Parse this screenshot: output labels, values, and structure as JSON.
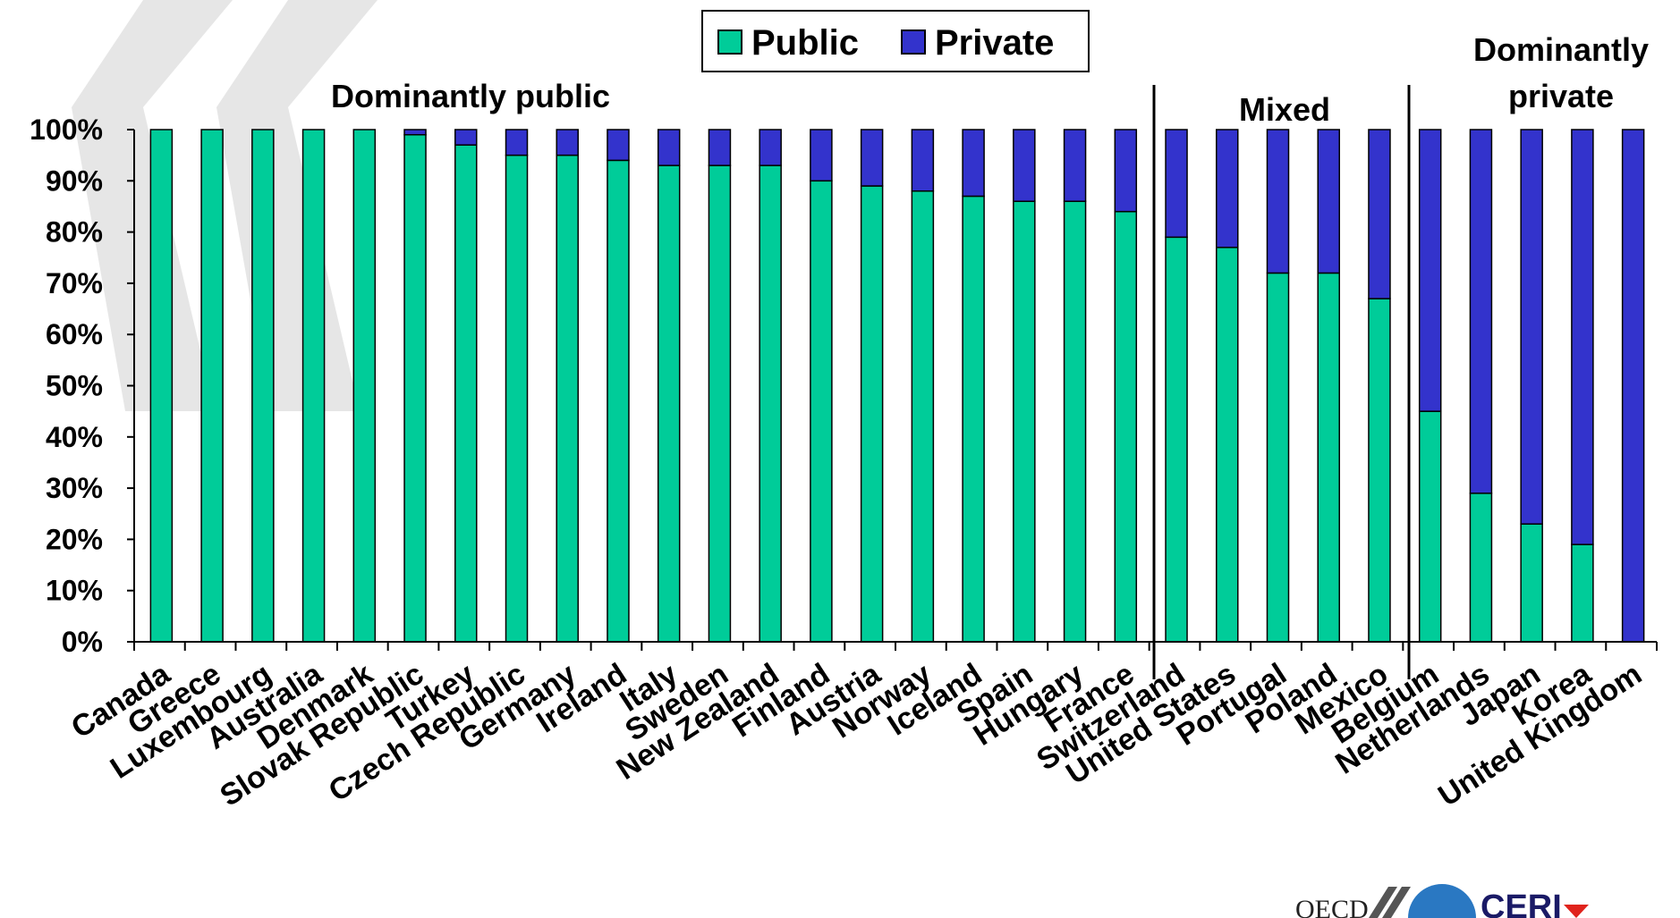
{
  "colors": {
    "public": "#00CC99",
    "private": "#3333CC",
    "axis": "#000000",
    "chevron": "#e6e6e6",
    "logo_circle": "#2a78c2",
    "logo_red": "#e0231c"
  },
  "legend": {
    "public_label": "Public",
    "private_label": "Private"
  },
  "groups": {
    "public": "Dominantly public",
    "mixed": "Mixed",
    "private_line1": "Dominantly",
    "private_line2": "private"
  },
  "logos": {
    "oecd": "OECD",
    "ceri": "CERI",
    "icon": "chevrons-logo-icon"
  },
  "chart_data": {
    "type": "bar",
    "stacked": true,
    "percent": true,
    "categories": [
      "Canada",
      "Greece",
      "Luxembourg",
      "Australia",
      "Denmark",
      "Slovak Republic",
      "Turkey",
      "Czech Republic",
      "Germany",
      "Ireland",
      "Italy",
      "Sweden",
      "New Zealand",
      "Finland",
      "Austria",
      "Norway",
      "Iceland",
      "Spain",
      "Hungary",
      "France",
      "Switzerland",
      "United States",
      "Portugal",
      "Poland",
      "Mexico",
      "Belgium",
      "Netherlands",
      "Japan",
      "Korea",
      "United Kingdom"
    ],
    "series": [
      {
        "name": "Public",
        "values": [
          100,
          100,
          100,
          100,
          100,
          99,
          97,
          95,
          95,
          94,
          93,
          93,
          93,
          90,
          89,
          88,
          87,
          86,
          86,
          84,
          79,
          77,
          72,
          72,
          67,
          45,
          29,
          23,
          19,
          0
        ]
      },
      {
        "name": "Private",
        "values": [
          0,
          0,
          0,
          0,
          0,
          1,
          3,
          5,
          5,
          6,
          7,
          7,
          7,
          10,
          11,
          12,
          13,
          14,
          14,
          16,
          21,
          23,
          28,
          28,
          33,
          55,
          71,
          77,
          81,
          100
        ]
      }
    ],
    "yticks": [
      "0%",
      "10%",
      "20%",
      "30%",
      "40%",
      "50%",
      "60%",
      "70%",
      "80%",
      "90%",
      "100%"
    ],
    "ylim": [
      0,
      100
    ],
    "grid": false,
    "legend_placement": "top-center",
    "group_dividers_after": [
      "France",
      "Belgium"
    ]
  }
}
